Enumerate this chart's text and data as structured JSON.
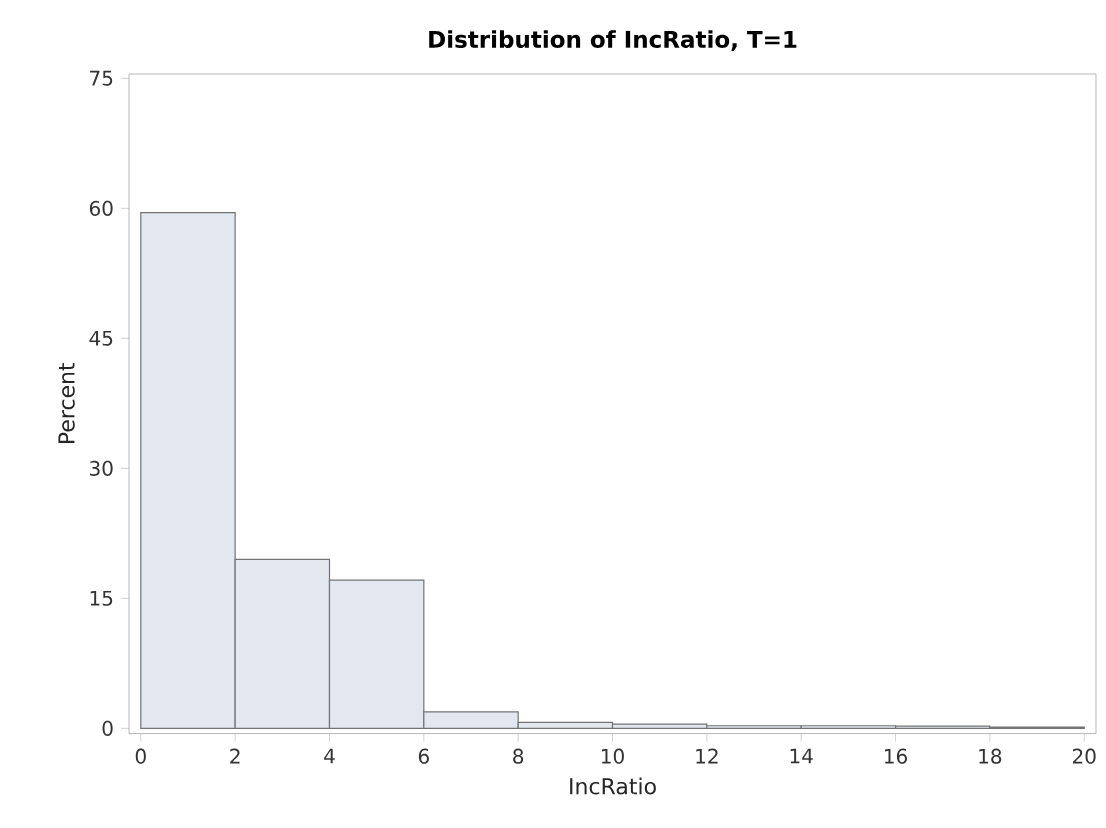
{
  "chart_data": {
    "type": "histogram",
    "title": "Distribution of IncRatio, T=1",
    "xlabel": "IncRatio",
    "ylabel": "Percent",
    "bins": [
      0,
      2,
      4,
      6,
      8,
      10,
      12,
      14,
      16,
      18,
      20
    ],
    "values": [
      59.5,
      19.5,
      17.1,
      1.9,
      0.7,
      0.5,
      0.3,
      0.3,
      0.25,
      0.15
    ],
    "color": "#e3e7f0",
    "xlim": [
      -0.25,
      20.25
    ],
    "ylim": [
      -0.6,
      75.5
    ],
    "xticks": [
      0,
      2,
      4,
      6,
      8,
      10,
      12,
      14,
      16,
      18,
      20
    ],
    "yticks": [
      0,
      15,
      30,
      45,
      60,
      75
    ],
    "grid": false
  }
}
